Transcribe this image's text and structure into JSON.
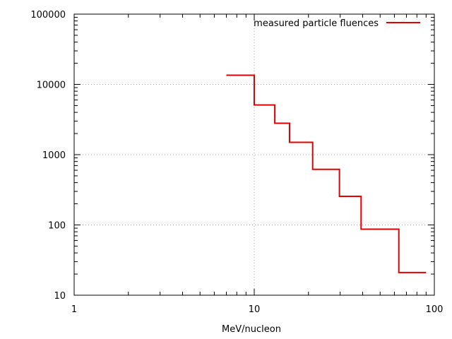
{
  "chart_data": {
    "type": "line",
    "step": true,
    "title": "",
    "xlabel": "MeV/nucleon",
    "ylabel": "",
    "xscale": "log",
    "yscale": "log",
    "xlim": [
      1,
      100
    ],
    "ylim": [
      10,
      100000
    ],
    "grid": true,
    "legend_position": "top-right",
    "x_ticks": [
      "1",
      "10",
      "100"
    ],
    "y_ticks": [
      "10",
      "100",
      "1000",
      "10000",
      "100000"
    ],
    "series": [
      {
        "name": "measured particle fluences",
        "color": "#e00000",
        "bins": [
          {
            "x_start": 7,
            "x_end": 10,
            "y": 13500
          },
          {
            "x_start": 10,
            "x_end": 13,
            "y": 5100
          },
          {
            "x_start": 13,
            "x_end": 15.7,
            "y": 2800
          },
          {
            "x_start": 15.7,
            "x_end": 21.1,
            "y": 1500
          },
          {
            "x_start": 21.1,
            "x_end": 29.7,
            "y": 620
          },
          {
            "x_start": 29.7,
            "x_end": 39.2,
            "y": 255
          },
          {
            "x_start": 39.2,
            "x_end": 63.5,
            "y": 87
          },
          {
            "x_start": 63.5,
            "x_end": 90,
            "y": 21
          }
        ]
      }
    ]
  }
}
